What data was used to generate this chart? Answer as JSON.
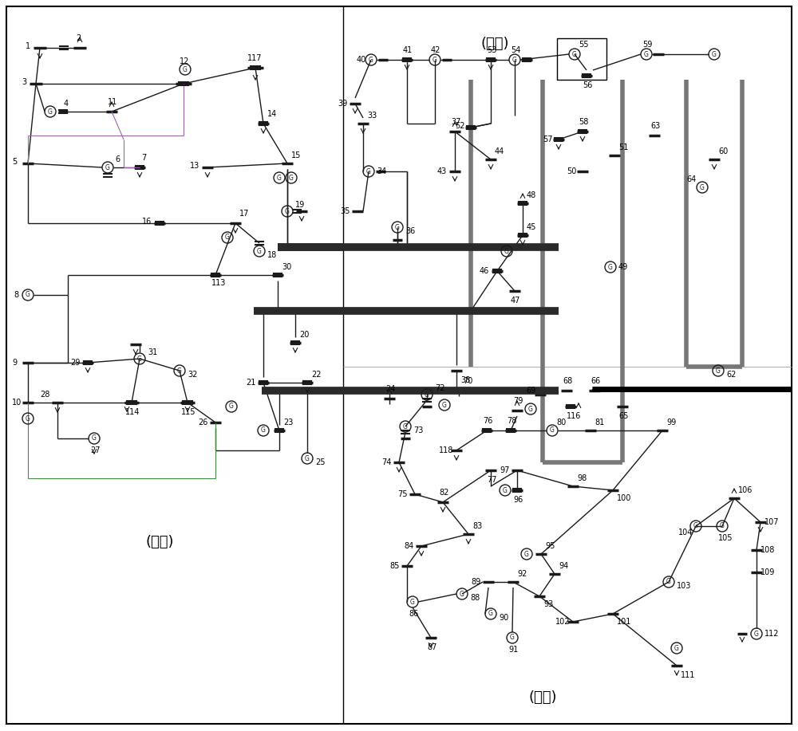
{
  "background": "#ffffff",
  "line_color_dark": "#1a1a1a",
  "line_color_medium": "#555555",
  "line_color_light": "#888888",
  "line_color_gray": "#777777",
  "thick_line_color": "#2a2a2a",
  "purple_color": "#9966aa",
  "green_color": "#448844",
  "region1_label": "(一区)",
  "region2_label": "(二区)",
  "region3_label": "(三区)"
}
